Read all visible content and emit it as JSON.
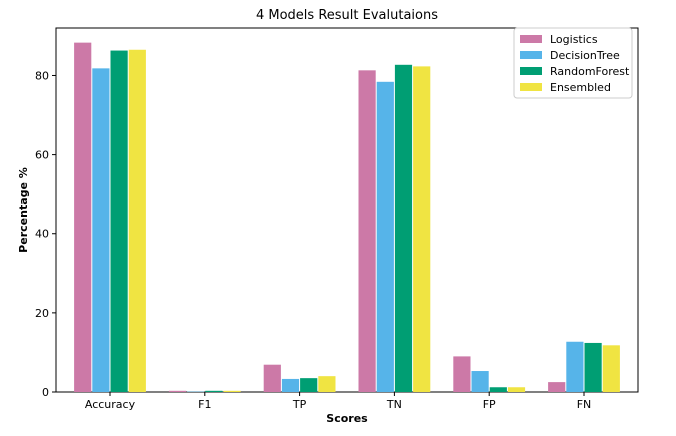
{
  "chart_data": {
    "type": "bar",
    "title": "4 Models Result Evalutaions",
    "xlabel": "Scores",
    "ylabel": "Percentage %",
    "categories": [
      "Accuracy",
      "F1",
      "TP",
      "TN",
      "FP",
      "FN"
    ],
    "ylim": [
      0,
      92
    ],
    "yticks": [
      0,
      20,
      40,
      60,
      80
    ],
    "grid": false,
    "legend_position": "top-right",
    "series": [
      {
        "name": "Logistics",
        "color": "#cc79a7",
        "values": [
          88.3,
          0.3,
          6.9,
          81.3,
          9.0,
          2.5
        ]
      },
      {
        "name": "DecisionTree",
        "color": "#56b4e9",
        "values": [
          81.8,
          0.1,
          3.3,
          78.4,
          5.3,
          12.7
        ]
      },
      {
        "name": "RandomForest",
        "color": "#009e73",
        "values": [
          86.3,
          0.3,
          3.5,
          82.7,
          1.2,
          12.4
        ]
      },
      {
        "name": "Ensembled",
        "color": "#f0e442",
        "values": [
          86.5,
          0.3,
          4.0,
          82.3,
          1.2,
          11.8
        ]
      }
    ]
  }
}
